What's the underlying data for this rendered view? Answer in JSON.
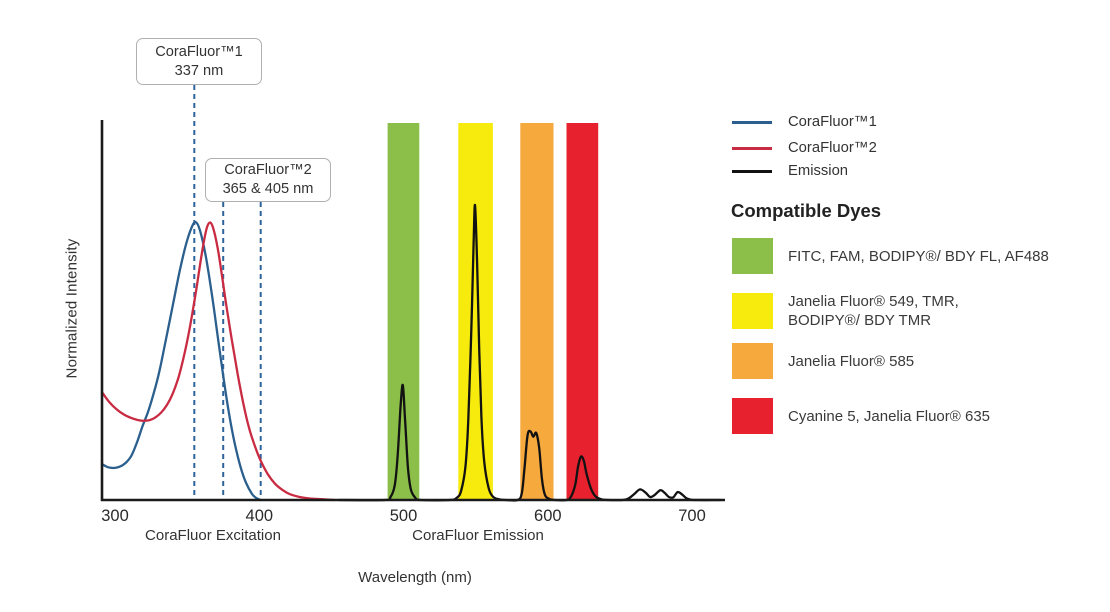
{
  "chart_data": {
    "type": "line",
    "title": "",
    "xlabel": "Wavelength (nm)",
    "ylabel": "Normalized Intensity",
    "x_axis_caption_left": "CoraFluor Excitation",
    "x_axis_caption_right": "CoraFluor Emission",
    "x_ticks": [
      300,
      400,
      500,
      600,
      700
    ],
    "xlim": [
      291,
      723
    ],
    "ylim": [
      0,
      1
    ],
    "grid": false,
    "colors": {
      "dash": "#2F639C",
      "axis": "#1A1A1A",
      "tick_text": "#2B2B2B"
    },
    "series": [
      {
        "name": "CoraFluor 1 excitation",
        "color": "#2B5F8D",
        "points": [
          [
            291,
            0.095
          ],
          [
            295,
            0.087
          ],
          [
            299,
            0.085
          ],
          [
            303,
            0.088
          ],
          [
            307,
            0.097
          ],
          [
            311,
            0.115
          ],
          [
            315,
            0.15
          ],
          [
            319,
            0.195
          ],
          [
            323,
            0.235
          ],
          [
            327,
            0.285
          ],
          [
            331,
            0.345
          ],
          [
            335,
            0.42
          ],
          [
            340,
            0.515
          ],
          [
            345,
            0.61
          ],
          [
            349,
            0.675
          ],
          [
            353,
            0.722
          ],
          [
            356,
            0.737
          ],
          [
            359,
            0.714
          ],
          [
            363,
            0.645
          ],
          [
            367,
            0.55
          ],
          [
            371,
            0.44
          ],
          [
            375,
            0.33
          ],
          [
            379,
            0.23
          ],
          [
            383,
            0.15
          ],
          [
            387,
            0.088
          ],
          [
            391,
            0.044
          ],
          [
            395,
            0.016
          ],
          [
            398,
            0.005
          ],
          [
            401,
            0
          ]
        ]
      },
      {
        "name": "CoraFluor 2 excitation",
        "color": "#C92B42",
        "points": [
          [
            291,
            0.286
          ],
          [
            296,
            0.26
          ],
          [
            301,
            0.241
          ],
          [
            306,
            0.227
          ],
          [
            311,
            0.218
          ],
          [
            316,
            0.212
          ],
          [
            320,
            0.21
          ],
          [
            324,
            0.212
          ],
          [
            328,
            0.219
          ],
          [
            332,
            0.232
          ],
          [
            336,
            0.252
          ],
          [
            340,
            0.282
          ],
          [
            344,
            0.325
          ],
          [
            348,
            0.385
          ],
          [
            352,
            0.46
          ],
          [
            356,
            0.55
          ],
          [
            359,
            0.625
          ],
          [
            362,
            0.693
          ],
          [
            364,
            0.726
          ],
          [
            366,
            0.736
          ],
          [
            368,
            0.722
          ],
          [
            371,
            0.672
          ],
          [
            374,
            0.6
          ],
          [
            377,
            0.52
          ],
          [
            381,
            0.425
          ],
          [
            385,
            0.335
          ],
          [
            389,
            0.255
          ],
          [
            393,
            0.19
          ],
          [
            397,
            0.143
          ],
          [
            401,
            0.104
          ],
          [
            406,
            0.068
          ],
          [
            411,
            0.043
          ],
          [
            416,
            0.027
          ],
          [
            421,
            0.016
          ],
          [
            428,
            0.008
          ],
          [
            435,
            0.004
          ],
          [
            443,
            0.002
          ],
          [
            452,
            0
          ]
        ]
      },
      {
        "name": "Emission",
        "color": "#121212",
        "points": [
          [
            455,
            0
          ],
          [
            487,
            0
          ],
          [
            491,
            0.008
          ],
          [
            494,
            0.04
          ],
          [
            496,
            0.12
          ],
          [
            498,
            0.25
          ],
          [
            499.5,
            0.305
          ],
          [
            501,
            0.22
          ],
          [
            503,
            0.09
          ],
          [
            505,
            0.03
          ],
          [
            508,
            0.007
          ],
          [
            512,
            0
          ],
          [
            532,
            0
          ],
          [
            537,
            0.006
          ],
          [
            540,
            0.025
          ],
          [
            543,
            0.09
          ],
          [
            545,
            0.22
          ],
          [
            547,
            0.45
          ],
          [
            548.6,
            0.68
          ],
          [
            549.6,
            0.782
          ],
          [
            551,
            0.63
          ],
          [
            552.5,
            0.4
          ],
          [
            554,
            0.22
          ],
          [
            556,
            0.1
          ],
          [
            559,
            0.032
          ],
          [
            562,
            0.009
          ],
          [
            566,
            0.002
          ],
          [
            571,
            0
          ],
          [
            579,
            0
          ],
          [
            582,
            0.018
          ],
          [
            584,
            0.09
          ],
          [
            586,
            0.172
          ],
          [
            588,
            0.182
          ],
          [
            590,
            0.168
          ],
          [
            592,
            0.178
          ],
          [
            594,
            0.14
          ],
          [
            596,
            0.055
          ],
          [
            598,
            0.014
          ],
          [
            601,
            0.003
          ],
          [
            605,
            0
          ],
          [
            613,
            0
          ],
          [
            616,
            0.008
          ],
          [
            619,
            0.04
          ],
          [
            621,
            0.088
          ],
          [
            623,
            0.115
          ],
          [
            625,
            0.104
          ],
          [
            627,
            0.068
          ],
          [
            630,
            0.03
          ],
          [
            633,
            0.01
          ],
          [
            637,
            0.002
          ],
          [
            642,
            0
          ],
          [
            652,
            0
          ],
          [
            656,
            0.004
          ],
          [
            660,
            0.016
          ],
          [
            664,
            0.028
          ],
          [
            668,
            0.019
          ],
          [
            671,
            0.008
          ],
          [
            674,
            0.013
          ],
          [
            678,
            0.026
          ],
          [
            681,
            0.019
          ],
          [
            684,
            0.008
          ],
          [
            687,
            0.007
          ],
          [
            690,
            0.021
          ],
          [
            693,
            0.015
          ],
          [
            696,
            0.005
          ],
          [
            699,
            0.001
          ],
          [
            703,
            0
          ],
          [
            720,
            0
          ]
        ]
      }
    ],
    "bands": [
      {
        "nm": [
          489,
          511
        ],
        "color": "#8CBF4A"
      },
      {
        "nm": [
          538,
          562
        ],
        "color": "#F7EB0E"
      },
      {
        "nm": [
          581,
          604
        ],
        "color": "#F6A93C"
      },
      {
        "nm": [
          613,
          635
        ],
        "color": "#E8212F"
      }
    ],
    "callouts": [
      {
        "line1": "CoraFluor™1",
        "line2": "337 nm",
        "dash_nm": [
          355
        ]
      },
      {
        "line1": "CoraFluor™2",
        "line2": "365 & 405 nm",
        "dash_nm": [
          375,
          401
        ]
      }
    ]
  },
  "legend": {
    "items": [
      {
        "label": "CoraFluor™1",
        "color": "#2B5F8D"
      },
      {
        "label": "CoraFluor™2",
        "color": "#C92B42"
      },
      {
        "label": "Emission",
        "color": "#121212"
      }
    ]
  },
  "dyes": {
    "heading": "Compatible Dyes",
    "items": [
      {
        "color": "#8CBF4A",
        "line1": "FITC, FAM, BODIPY®/ BDY FL, AF488",
        "line2": ""
      },
      {
        "color": "#F7EB0E",
        "line1": "Janelia Fluor® 549, TMR,",
        "line2": "BODIPY®/ BDY TMR"
      },
      {
        "color": "#F6A93C",
        "line1": "Janelia Fluor® 585",
        "line2": ""
      },
      {
        "color": "#E8212F",
        "line1": "Cyanine 5, Janelia Fluor® 635",
        "line2": ""
      }
    ]
  }
}
